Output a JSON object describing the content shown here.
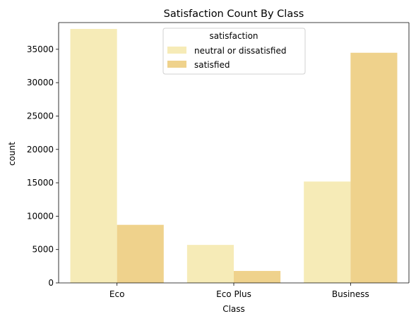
{
  "chart_data": {
    "type": "bar",
    "title": "Satisfaction Count By Class",
    "xlabel": "Class",
    "ylabel": "count",
    "categories": [
      "Eco",
      "Eco Plus",
      "Business"
    ],
    "series": [
      {
        "name": "neutral or dissatisfied",
        "values": [
          38044,
          5692,
          15185
        ],
        "color": "#f6ebb7"
      },
      {
        "name": "satisfied",
        "values": [
          8701,
          1793,
          34480
        ],
        "color": "#efd28c"
      }
    ],
    "ylim": [
      0,
      39000
    ],
    "yticks": [
      0,
      5000,
      10000,
      15000,
      20000,
      25000,
      30000,
      35000
    ],
    "grid": false,
    "legend": {
      "title": "satisfaction",
      "placement": "top-center"
    }
  }
}
